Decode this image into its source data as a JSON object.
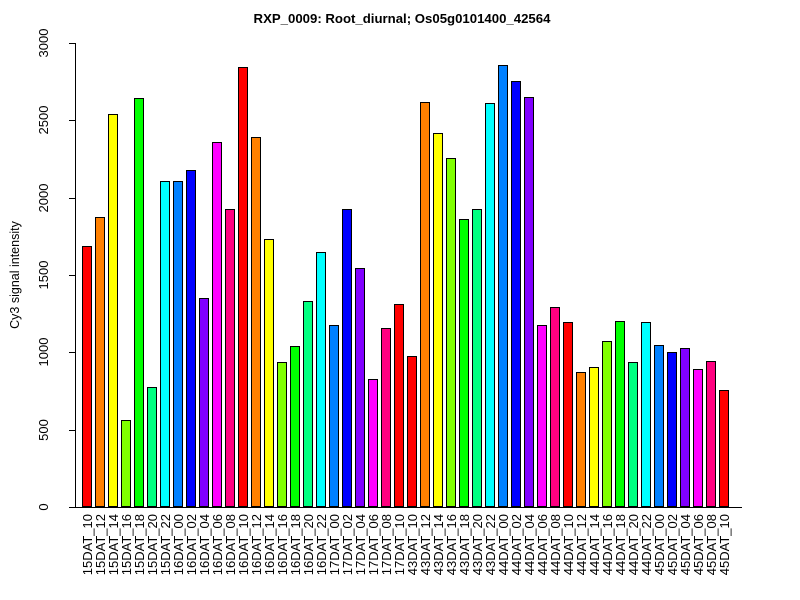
{
  "chart_data": {
    "type": "bar",
    "title": "RXP_0009: Root_diurnal; Os05g0101400_42564",
    "ylabel": "Cy3 signal intensity",
    "xlabel": "",
    "ylim": [
      0,
      3000
    ],
    "yticks": [
      0,
      500,
      1000,
      1500,
      2000,
      2500,
      3000
    ],
    "grid": false,
    "legend": false,
    "categories": [
      "15DAT_10",
      "15DAT_12",
      "15DAT_14",
      "15DAT_16",
      "15DAT_18",
      "15DAT_20",
      "15DAT_22",
      "16DAT_00",
      "16DAT_02",
      "16DAT_04",
      "16DAT_06",
      "16DAT_08",
      "16DAT_10",
      "16DAT_12",
      "16DAT_14",
      "16DAT_16",
      "16DAT_18",
      "16DAT_20",
      "16DAT_22",
      "17DAT_00",
      "17DAT_02",
      "17DAT_04",
      "17DAT_06",
      "17DAT_08",
      "17DAT_10",
      "43DAT_10",
      "43DAT_12",
      "43DAT_14",
      "43DAT_16",
      "43DAT_18",
      "43DAT_20",
      "43DAT_22",
      "44DAT_00",
      "44DAT_02",
      "44DAT_04",
      "44DAT_06",
      "44DAT_08",
      "44DAT_10",
      "44DAT_12",
      "44DAT_14",
      "44DAT_16",
      "44DAT_18",
      "44DAT_20",
      "44DAT_22",
      "45DAT_00",
      "45DAT_02",
      "45DAT_04",
      "45DAT_06",
      "45DAT_08",
      "45DAT_10"
    ],
    "values": [
      1690,
      1875,
      2540,
      565,
      2645,
      775,
      2110,
      2110,
      2180,
      1350,
      2360,
      1925,
      2845,
      2395,
      1730,
      940,
      1040,
      1335,
      1650,
      1175,
      1925,
      1545,
      825,
      1160,
      1310,
      975,
      2620,
      2420,
      2255,
      1860,
      1925,
      2610,
      2860,
      2755,
      2650,
      1175,
      1290,
      1195,
      875,
      905,
      1075,
      1205,
      935,
      1195,
      1045,
      1005,
      1025,
      890,
      945,
      755
    ],
    "bar_colors": [
      "#FF0000",
      "#FF8000",
      "#FFFF00",
      "#80FF00",
      "#00FF00",
      "#00FF80",
      "#00FFFF",
      "#0080FF",
      "#0000FF",
      "#8000FF",
      "#FF00FF",
      "#FF0080",
      "#FF0000",
      "#FF8000",
      "#FFFF00",
      "#80FF00",
      "#00FF00",
      "#00FF80",
      "#00FFFF",
      "#0080FF",
      "#0000FF",
      "#8000FF",
      "#FF00FF",
      "#FF0080",
      "#FF0000",
      "#FF0000",
      "#FF8000",
      "#FFFF00",
      "#80FF00",
      "#00FF00",
      "#00FF80",
      "#00FFFF",
      "#0080FF",
      "#0000FF",
      "#8000FF",
      "#FF00FF",
      "#FF0080",
      "#FF0000",
      "#FF8000",
      "#FFFF00",
      "#80FF00",
      "#00FF00",
      "#00FF80",
      "#00FFFF",
      "#0080FF",
      "#0000FF",
      "#8000FF",
      "#FF00FF",
      "#FF0080",
      "#FF0000"
    ],
    "palette_rainbow12": [
      "#FF0000",
      "#FF8000",
      "#FFFF00",
      "#80FF00",
      "#00FF00",
      "#00FF80",
      "#00FFFF",
      "#0080FF",
      "#0000FF",
      "#8000FF",
      "#FF00FF",
      "#FF0080"
    ]
  }
}
